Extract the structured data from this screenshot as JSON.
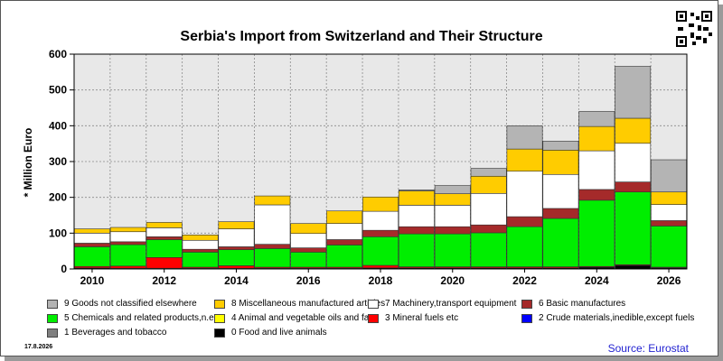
{
  "chart_data": {
    "type": "bar",
    "stacked": true,
    "title": "Serbia's Import from Switzerland and Their Structure",
    "ylabel": "* Million Euro",
    "ylim": [
      0,
      600
    ],
    "y_ticks": [
      0,
      100,
      200,
      300,
      400,
      500,
      600
    ],
    "categories": [
      "2010",
      "2011",
      "2012",
      "2013",
      "2014",
      "2015",
      "2016",
      "2017",
      "2018",
      "2019",
      "2020",
      "2021",
      "2022",
      "2023",
      "2024",
      "2025",
      "2026"
    ],
    "x_tick_labels": [
      "2010",
      "2012",
      "2014",
      "2016",
      "2018",
      "2020",
      "2022",
      "2024",
      "2026"
    ],
    "grid": true,
    "legend_position": "bottom",
    "series": [
      {
        "name": "0 Food and live animals",
        "color": "#000000",
        "values": [
          3,
          2,
          2,
          2,
          2,
          2,
          2,
          2,
          3,
          3,
          3,
          3,
          3,
          3,
          5,
          10,
          3
        ]
      },
      {
        "name": "1 Beverages and tobacco",
        "color": "#808080",
        "values": [
          0,
          0,
          0,
          0,
          0,
          0,
          0,
          0,
          0,
          0,
          0,
          0,
          0,
          0,
          0,
          0,
          0
        ]
      },
      {
        "name": "2 Crude materials,inedible,except fuels",
        "color": "#0000ff",
        "values": [
          0,
          0,
          0,
          0,
          0,
          0,
          0,
          0,
          0,
          0,
          0,
          0,
          0,
          0,
          0,
          0,
          0
        ]
      },
      {
        "name": "3 Mineral fuels etc",
        "color": "#ff0000",
        "values": [
          4,
          6,
          30,
          3,
          7,
          3,
          3,
          3,
          7,
          3,
          3,
          3,
          3,
          3,
          2,
          2,
          2
        ]
      },
      {
        "name": "4 Animal and vegetable oils and fats",
        "color": "#ffff00",
        "values": [
          0,
          0,
          0,
          0,
          0,
          0,
          0,
          0,
          0,
          0,
          0,
          0,
          0,
          0,
          0,
          0,
          0
        ]
      },
      {
        "name": "5 Chemicals and related products,n.e.s.",
        "color": "#00ee00",
        "values": [
          55,
          60,
          50,
          42,
          45,
          52,
          42,
          62,
          80,
          92,
          92,
          95,
          112,
          135,
          185,
          203,
          115
        ]
      },
      {
        "name": "6 Basic manufactures",
        "color": "#a52a2a",
        "values": [
          10,
          8,
          8,
          8,
          8,
          12,
          12,
          15,
          18,
          20,
          20,
          22,
          28,
          28,
          30,
          28,
          15
        ]
      },
      {
        "name": "7 Machinery,transport equipment",
        "color": "#ffffff",
        "values": [
          28,
          28,
          25,
          25,
          50,
          110,
          40,
          45,
          53,
          60,
          60,
          88,
          127,
          95,
          108,
          108,
          45
        ]
      },
      {
        "name": "8 Miscellaneous manufactured articles",
        "color": "#ffcc00",
        "values": [
          12,
          12,
          15,
          15,
          20,
          25,
          28,
          35,
          40,
          40,
          32,
          48,
          62,
          68,
          68,
          70,
          35
        ]
      },
      {
        "name": "9 Goods not classified elsewhere",
        "color": "#b4b4b4",
        "values": [
          0,
          0,
          0,
          0,
          0,
          0,
          0,
          0,
          0,
          3,
          23,
          22,
          65,
          25,
          42,
          145,
          90
        ]
      }
    ]
  },
  "footer": {
    "date": "17.8.2026",
    "source": "Source: Eurostat"
  }
}
